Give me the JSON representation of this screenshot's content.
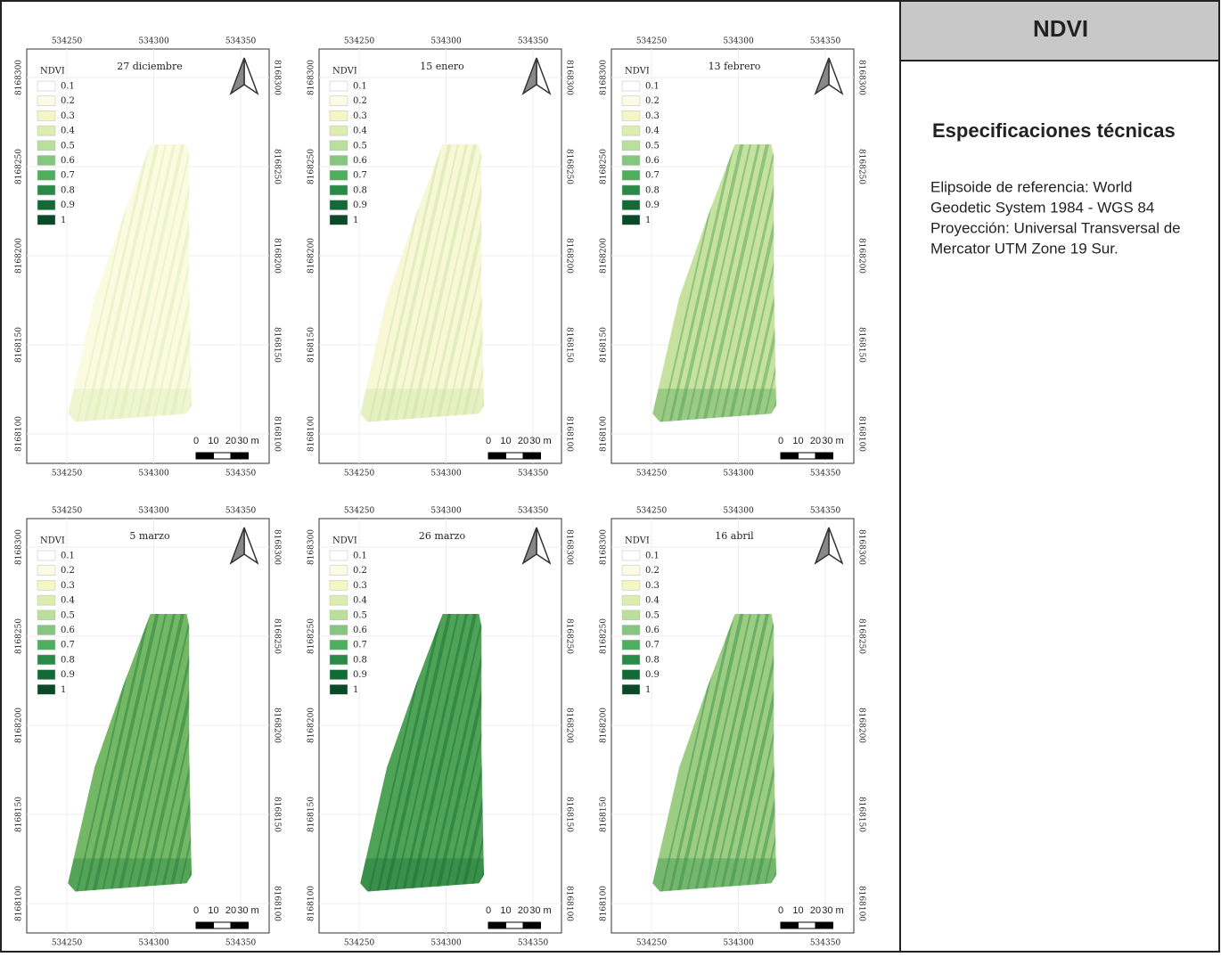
{
  "header": {
    "title": "NDVI"
  },
  "specs": {
    "heading": "Especificaciones técnicas",
    "lines": [
      "Elipsoide de referencia: World",
      "Geodetic System 1984 - WGS 84",
      "Proyección: Universal Transversal de",
      "Mercator UTM Zone 19 Sur."
    ]
  },
  "legend": {
    "title": "NDVI",
    "classes": [
      {
        "value": 0.1,
        "color": "#ffffff"
      },
      {
        "value": 0.2,
        "color": "#fbfbe6"
      },
      {
        "value": 0.3,
        "color": "#f4f7c4"
      },
      {
        "value": 0.4,
        "color": "#dcedae"
      },
      {
        "value": 0.5,
        "color": "#b8df9c"
      },
      {
        "value": 0.6,
        "color": "#86c77f"
      },
      {
        "value": 0.7,
        "color": "#4faf5f"
      },
      {
        "value": 0.8,
        "color": "#2a8a47"
      },
      {
        "value": 0.9,
        "color": "#126a36"
      },
      {
        "value": 1,
        "color": "#0a4a28"
      }
    ]
  },
  "x_ticks": [
    534250,
    534300,
    534350
  ],
  "y_ticks": [
    8168100,
    8168150,
    8168200,
    8168250,
    8168300
  ],
  "scale_labels": [
    "0",
    "10",
    "20",
    "30 m"
  ],
  "maps": [
    {
      "title": "27 diciembre",
      "fill": "#fbfbe2",
      "streak": "#d9ebb0"
    },
    {
      "title": "15 enero",
      "fill": "#f8f8d6",
      "streak": "#c6e39f"
    },
    {
      "title": "13 febrero",
      "fill": "#c6e29e",
      "streak": "#4a9f55"
    },
    {
      "title": "5 marzo",
      "fill": "#74b866",
      "streak": "#1e7a3c"
    },
    {
      "title": "26 marzo",
      "fill": "#4fa356",
      "streak": "#156c34"
    },
    {
      "title": "16 abril",
      "fill": "#9ccd82",
      "streak": "#2f8c47"
    }
  ]
}
